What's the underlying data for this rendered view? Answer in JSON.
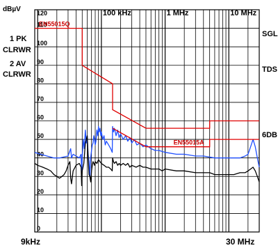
{
  "chart_data": {
    "type": "line",
    "y_unit_label": "dBµV",
    "y_axis": {
      "min": 0,
      "max": 120,
      "ticks": [
        0,
        10,
        20,
        30,
        40,
        50,
        60,
        70,
        80,
        90,
        100,
        110,
        120
      ]
    },
    "x_axis": {
      "scale": "log",
      "min_hz": 9000,
      "max_hz": 30000000,
      "top_tick_labels": [
        {
          "label": "100 kHz",
          "hz": 100000
        },
        {
          "label": "1 MHz",
          "hz": 1000000
        },
        {
          "label": "10 MHz",
          "hz": 10000000
        }
      ],
      "start_label": "9kHz",
      "stop_label": "30 MHz"
    },
    "grid": true,
    "left_annotations": [
      "1 PK",
      "CLRWR",
      "2 AV",
      "CLRWR"
    ],
    "right_annotations": [
      "SGL",
      "TDS",
      "6DB"
    ],
    "limit_lines": [
      {
        "name": "EN55015Q",
        "color": "#e00000",
        "points": [
          [
            9000,
            110
          ],
          [
            50000,
            110
          ],
          [
            50000,
            90
          ],
          [
            150000,
            80
          ],
          [
            150000,
            66
          ],
          [
            500000,
            56
          ],
          [
            5000000,
            56
          ],
          [
            5000000,
            60
          ],
          [
            30000000,
            60
          ]
        ]
      },
      {
        "name": "EN55015A",
        "color": "#e00000",
        "points": [
          [
            150000,
            56
          ],
          [
            500000,
            46
          ],
          [
            5000000,
            46
          ],
          [
            5000000,
            50
          ],
          [
            30000000,
            50
          ]
        ]
      }
    ],
    "series": [
      {
        "name": "1 PK",
        "color": "#1f4fff",
        "points": [
          [
            9000,
            43
          ],
          [
            11000,
            42
          ],
          [
            14000,
            41
          ],
          [
            18000,
            40
          ],
          [
            22000,
            40
          ],
          [
            26000,
            40.5
          ],
          [
            30000,
            41
          ],
          [
            33000,
            45
          ],
          [
            34000,
            40
          ],
          [
            36000,
            42
          ],
          [
            40000,
            41
          ],
          [
            45000,
            40
          ],
          [
            48000,
            42
          ],
          [
            49000,
            30
          ],
          [
            50000,
            40
          ],
          [
            52000,
            50
          ],
          [
            54000,
            45
          ],
          [
            56000,
            55
          ],
          [
            58000,
            48
          ],
          [
            60000,
            52
          ],
          [
            62000,
            42
          ],
          [
            64000,
            38
          ],
          [
            66000,
            30
          ],
          [
            68000,
            40
          ],
          [
            70000,
            44
          ],
          [
            72000,
            47
          ],
          [
            74000,
            48
          ],
          [
            76000,
            52
          ],
          [
            78000,
            50
          ],
          [
            80000,
            47
          ],
          [
            82000,
            49
          ],
          [
            85000,
            55
          ],
          [
            88000,
            52
          ],
          [
            90000,
            57
          ],
          [
            92000,
            54
          ],
          [
            95000,
            56
          ],
          [
            98000,
            52
          ],
          [
            100000,
            54
          ],
          [
            105000,
            50
          ],
          [
            110000,
            52
          ],
          [
            115000,
            47
          ],
          [
            120000,
            49
          ],
          [
            130000,
            47
          ],
          [
            140000,
            45
          ],
          [
            148000,
            43
          ],
          [
            150000,
            57
          ],
          [
            155000,
            54
          ],
          [
            160000,
            56
          ],
          [
            170000,
            52
          ],
          [
            180000,
            55
          ],
          [
            190000,
            51
          ],
          [
            200000,
            53
          ],
          [
            220000,
            50
          ],
          [
            240000,
            52
          ],
          [
            260000,
            49
          ],
          [
            280000,
            51
          ],
          [
            300000,
            48
          ],
          [
            330000,
            50
          ],
          [
            360000,
            47
          ],
          [
            400000,
            48
          ],
          [
            450000,
            46
          ],
          [
            500000,
            47
          ],
          [
            600000,
            45
          ],
          [
            700000,
            44
          ],
          [
            800000,
            44
          ],
          [
            1000000,
            43
          ],
          [
            1500000,
            42
          ],
          [
            2000000,
            42
          ],
          [
            3000000,
            41
          ],
          [
            4000000,
            41
          ],
          [
            6000000,
            40
          ],
          [
            8000000,
            40
          ],
          [
            10000000,
            40
          ],
          [
            12000000,
            40
          ],
          [
            15000000,
            40
          ],
          [
            18000000,
            41
          ],
          [
            20000000,
            42
          ],
          [
            22000000,
            46
          ],
          [
            24000000,
            50
          ],
          [
            26000000,
            46
          ],
          [
            28000000,
            40
          ],
          [
            30000000,
            35
          ]
        ]
      },
      {
        "name": "2 AV",
        "color": "#000000",
        "points": [
          [
            9000,
            37
          ],
          [
            10000,
            36
          ],
          [
            12000,
            35
          ],
          [
            14000,
            34
          ],
          [
            16000,
            33
          ],
          [
            18000,
            31
          ],
          [
            20000,
            30
          ],
          [
            22000,
            29
          ],
          [
            24000,
            30
          ],
          [
            26000,
            31
          ],
          [
            28000,
            33
          ],
          [
            30000,
            36
          ],
          [
            32000,
            38
          ],
          [
            33000,
            29
          ],
          [
            34000,
            26
          ],
          [
            36000,
            33
          ],
          [
            40000,
            36
          ],
          [
            45000,
            37
          ],
          [
            48000,
            35
          ],
          [
            49000,
            25
          ],
          [
            50000,
            33
          ],
          [
            53000,
            37
          ],
          [
            56000,
            48
          ],
          [
            58000,
            50
          ],
          [
            60000,
            52
          ],
          [
            62000,
            40
          ],
          [
            64000,
            31
          ],
          [
            66000,
            30
          ],
          [
            68000,
            27
          ],
          [
            70000,
            33
          ],
          [
            72000,
            36
          ],
          [
            74000,
            38
          ],
          [
            76000,
            37
          ],
          [
            78000,
            36
          ],
          [
            80000,
            38
          ],
          [
            85000,
            37
          ],
          [
            90000,
            39
          ],
          [
            95000,
            38
          ],
          [
            100000,
            37
          ],
          [
            110000,
            36
          ],
          [
            120000,
            35
          ],
          [
            130000,
            35
          ],
          [
            140000,
            34
          ],
          [
            148000,
            33
          ],
          [
            150000,
            40
          ],
          [
            155000,
            38
          ],
          [
            160000,
            37
          ],
          [
            170000,
            38
          ],
          [
            180000,
            36
          ],
          [
            190000,
            37
          ],
          [
            200000,
            36
          ],
          [
            220000,
            37
          ],
          [
            240000,
            36
          ],
          [
            260000,
            37
          ],
          [
            280000,
            35
          ],
          [
            300000,
            36
          ],
          [
            350000,
            35
          ],
          [
            400000,
            36
          ],
          [
            450000,
            35
          ],
          [
            500000,
            35
          ],
          [
            600000,
            34
          ],
          [
            700000,
            34
          ],
          [
            800000,
            34
          ],
          [
            900000,
            33
          ],
          [
            1000000,
            34
          ],
          [
            1500000,
            33
          ],
          [
            2000000,
            33
          ],
          [
            3000000,
            32
          ],
          [
            4000000,
            32
          ],
          [
            5000000,
            32
          ],
          [
            6000000,
            31
          ],
          [
            8000000,
            31
          ],
          [
            10000000,
            31
          ],
          [
            12000000,
            31
          ],
          [
            15000000,
            32
          ],
          [
            18000000,
            32
          ],
          [
            20000000,
            33
          ],
          [
            22000000,
            34
          ],
          [
            24000000,
            35
          ],
          [
            26000000,
            33
          ],
          [
            28000000,
            30
          ],
          [
            30000000,
            27
          ]
        ]
      }
    ]
  }
}
